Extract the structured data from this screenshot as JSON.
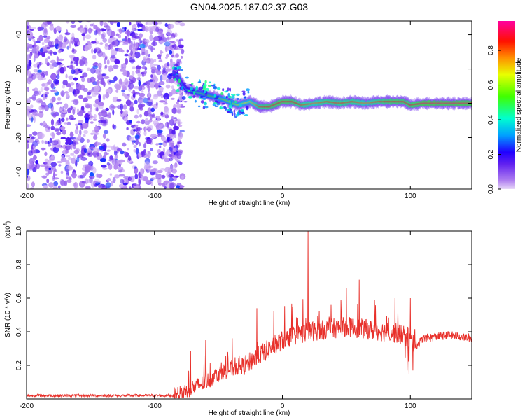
{
  "title": "GN04.2025.187.02.37.G03",
  "chart_data": [
    {
      "type": "heatmap",
      "xlabel": "Height of straight line (km)",
      "ylabel": "Frequency (Hz)",
      "xlim": [
        -200,
        148
      ],
      "ylim": [
        -50,
        48
      ],
      "xticks": [
        -200,
        -100,
        0,
        100
      ],
      "yticks": [
        40,
        20,
        0,
        -20,
        -40
      ],
      "colorbar": {
        "label": "Normalized spectral amplitude",
        "range": [
          0,
          0.97
        ],
        "ticks": [
          0.0,
          0.2,
          0.4,
          0.6,
          0.8
        ],
        "tick_labels": [
          "0.0",
          "0.2",
          "0.4",
          "0.6",
          "0.8"
        ],
        "colormap": [
          "#e8d8f8",
          "#8040f0",
          "#2000ff",
          "#00a0ff",
          "#00ffc0",
          "#40ff00",
          "#ffff00",
          "#ff8000",
          "#ff0000",
          "#ff00a0"
        ]
      },
      "features": {
        "noise_region_x": [
          -200,
          -80
        ],
        "noise_level": 0.2,
        "ridge": {
          "x": [
            -85,
            -75,
            -65,
            -55,
            -45,
            -35,
            -25,
            -18,
            -10,
            0,
            8,
            15,
            25,
            35,
            45,
            55,
            65,
            75,
            85,
            95,
            100,
            110,
            120,
            130,
            148
          ],
          "freq": [
            18,
            8,
            6,
            4,
            2,
            -1,
            1,
            -2,
            -2,
            1,
            1,
            -1,
            0,
            1,
            0,
            1,
            0,
            1,
            1,
            1,
            -1,
            0,
            0,
            0,
            0
          ],
          "amplitude": [
            0.3,
            0.4,
            0.5,
            0.55,
            0.6,
            0.65,
            0.7,
            0.85,
            0.9,
            0.92,
            0.9,
            0.85,
            0.8,
            0.85,
            0.85,
            0.85,
            0.8,
            0.85,
            0.9,
            0.9,
            0.9,
            0.95,
            0.95,
            0.95,
            0.95
          ]
        }
      }
    },
    {
      "type": "line",
      "xlabel": "Height of straight line (km)",
      "ylabel": "SNR (10 * v/v)",
      "scale_label": "(x10",
      "scale_exp": "4",
      "xlim": [
        -200,
        148
      ],
      "ylim": [
        0,
        1.0
      ],
      "xticks": [
        -200,
        -100,
        0,
        100
      ],
      "yticks": [
        0.2,
        0.4,
        0.6,
        0.8,
        1.0
      ],
      "ytick_labels": [
        "0.2",
        "0.4",
        "0.6",
        "0.8",
        "1.0"
      ],
      "line_color": "#e8302a",
      "envelope": {
        "x": [
          -200,
          -150,
          -100,
          -85,
          -80,
          -70,
          -60,
          -50,
          -40,
          -30,
          -20,
          -10,
          0,
          10,
          20,
          30,
          40,
          50,
          60,
          70,
          80,
          90,
          100,
          105,
          110,
          120,
          130,
          140,
          148
        ],
        "y": [
          0.02,
          0.02,
          0.02,
          0.02,
          0.03,
          0.07,
          0.1,
          0.15,
          0.18,
          0.2,
          0.25,
          0.3,
          0.35,
          0.38,
          0.4,
          0.41,
          0.42,
          0.43,
          0.42,
          0.41,
          0.4,
          0.39,
          0.36,
          0.32,
          0.36,
          0.37,
          0.38,
          0.37,
          0.36
        ]
      },
      "peaks": {
        "x": [
          -60,
          -20,
          20,
          38,
          50,
          60,
          72,
          88,
          100
        ],
        "y": [
          0.35,
          0.54,
          1.0,
          0.56,
          0.66,
          0.71,
          0.59,
          0.6,
          0.6
        ]
      }
    }
  ]
}
